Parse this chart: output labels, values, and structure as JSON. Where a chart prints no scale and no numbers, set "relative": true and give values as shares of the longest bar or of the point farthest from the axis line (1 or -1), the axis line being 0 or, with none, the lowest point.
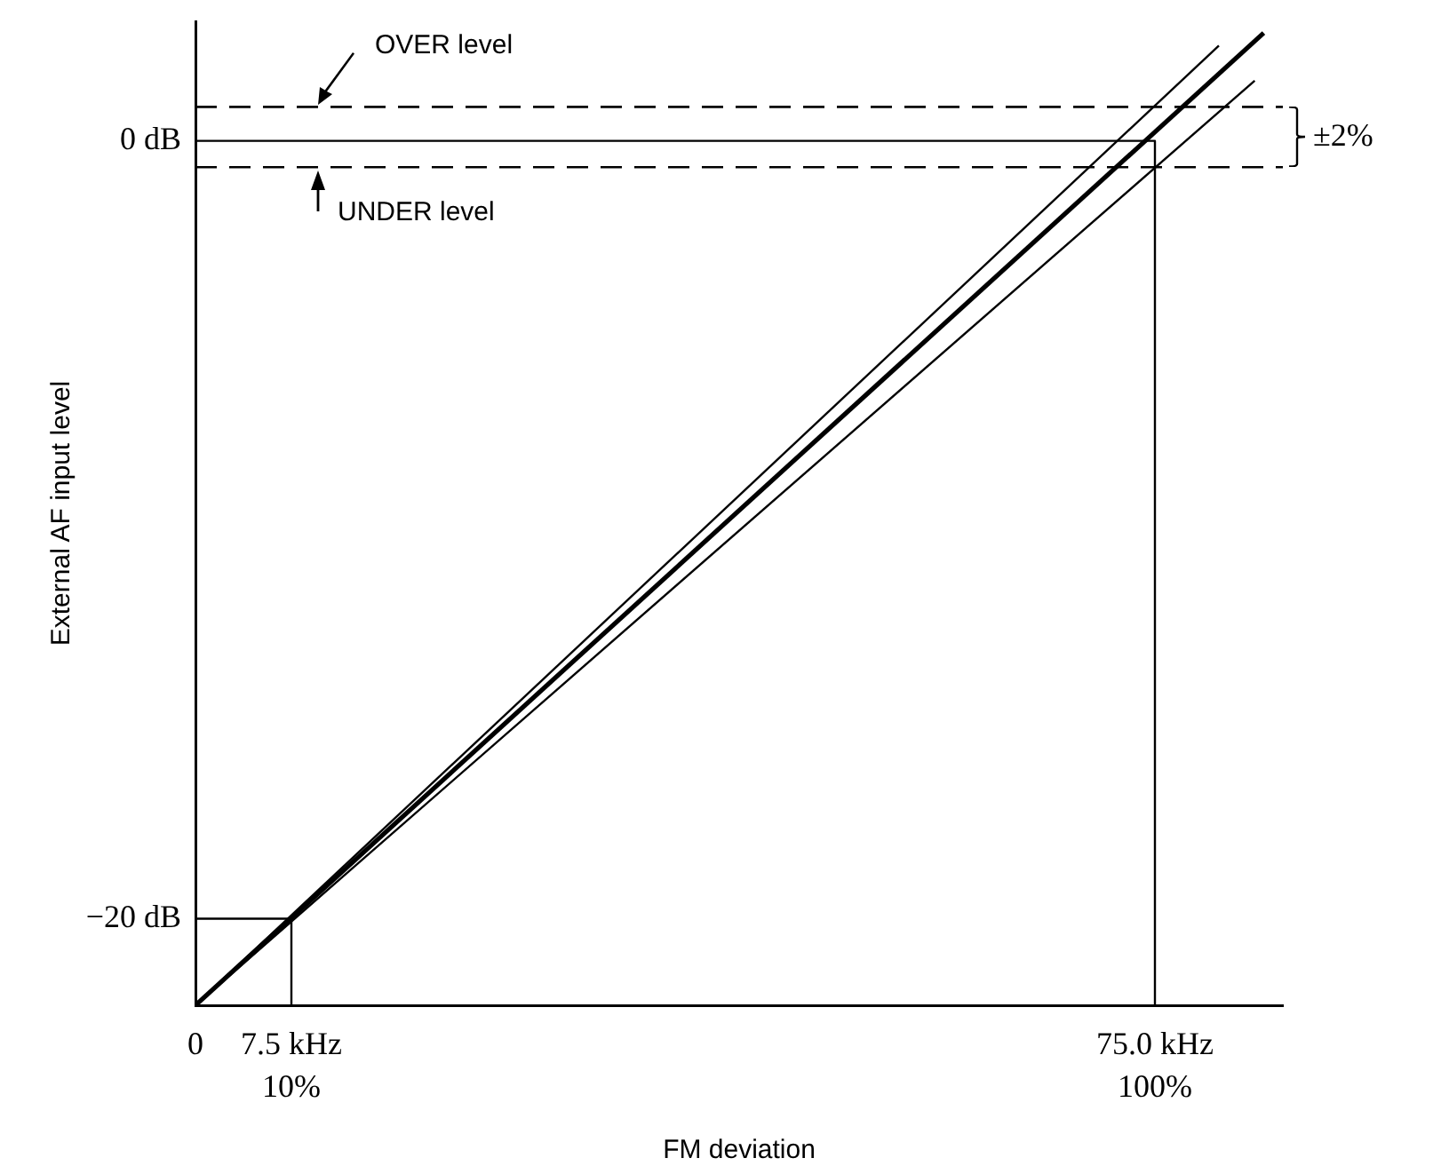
{
  "chart_data": {
    "type": "line",
    "xlabel": "FM deviation",
    "ylabel": "External AF input level",
    "relative": true,
    "xlim": [
      0,
      85
    ],
    "xticks": [
      0,
      {
        "value": 7.5,
        "label": "7.5 kHz"
      },
      {
        "value": 75,
        "label": "75.0 kHz"
      }
    ],
    "series": [
      {
        "color": "#000000",
        "x": [
          0,
          83.5
        ],
        "values": [
          0,
          1
        ]
      },
      {
        "color": "#000000",
        "x": [
          0,
          80
        ],
        "values": [
          0,
          0.987
        ]
      },
      {
        "color": "#000000",
        "x": [
          0,
          82.8
        ],
        "values": [
          0,
          0.951
        ]
      },
      {
        "color": "#000000",
        "x": [
          0,
          75,
          75
        ],
        "values": [
          0.889,
          0.889,
          0
        ]
      },
      {
        "color": "#000000",
        "x": [
          0,
          7.5,
          7.5
        ],
        "values": [
          0.089,
          0.089,
          0
        ]
      }
    ],
    "ref_lines": [
      {
        "axis": "y",
        "value": 0.924,
        "label": "OVER level",
        "color": "#000000",
        "line_style": "dashed"
      },
      {
        "axis": "y",
        "value": 0.862,
        "label": "UNDER level",
        "color": "#000000",
        "line_style": "dashed"
      }
    ],
    "annotations": [
      "±2%",
      {
        "text": "0 dB",
        "x": 0,
        "y": 0.889
      },
      {
        "text": "−20 dB",
        "x": 0,
        "y": 0.089
      },
      {
        "text": "10%",
        "x": 7.5,
        "y": 0
      },
      {
        "text": "100%",
        "x": 75,
        "y": 0
      }
    ],
    "grid": false,
    "legend": false,
    "marker": "none",
    "line_style": "solid"
  }
}
